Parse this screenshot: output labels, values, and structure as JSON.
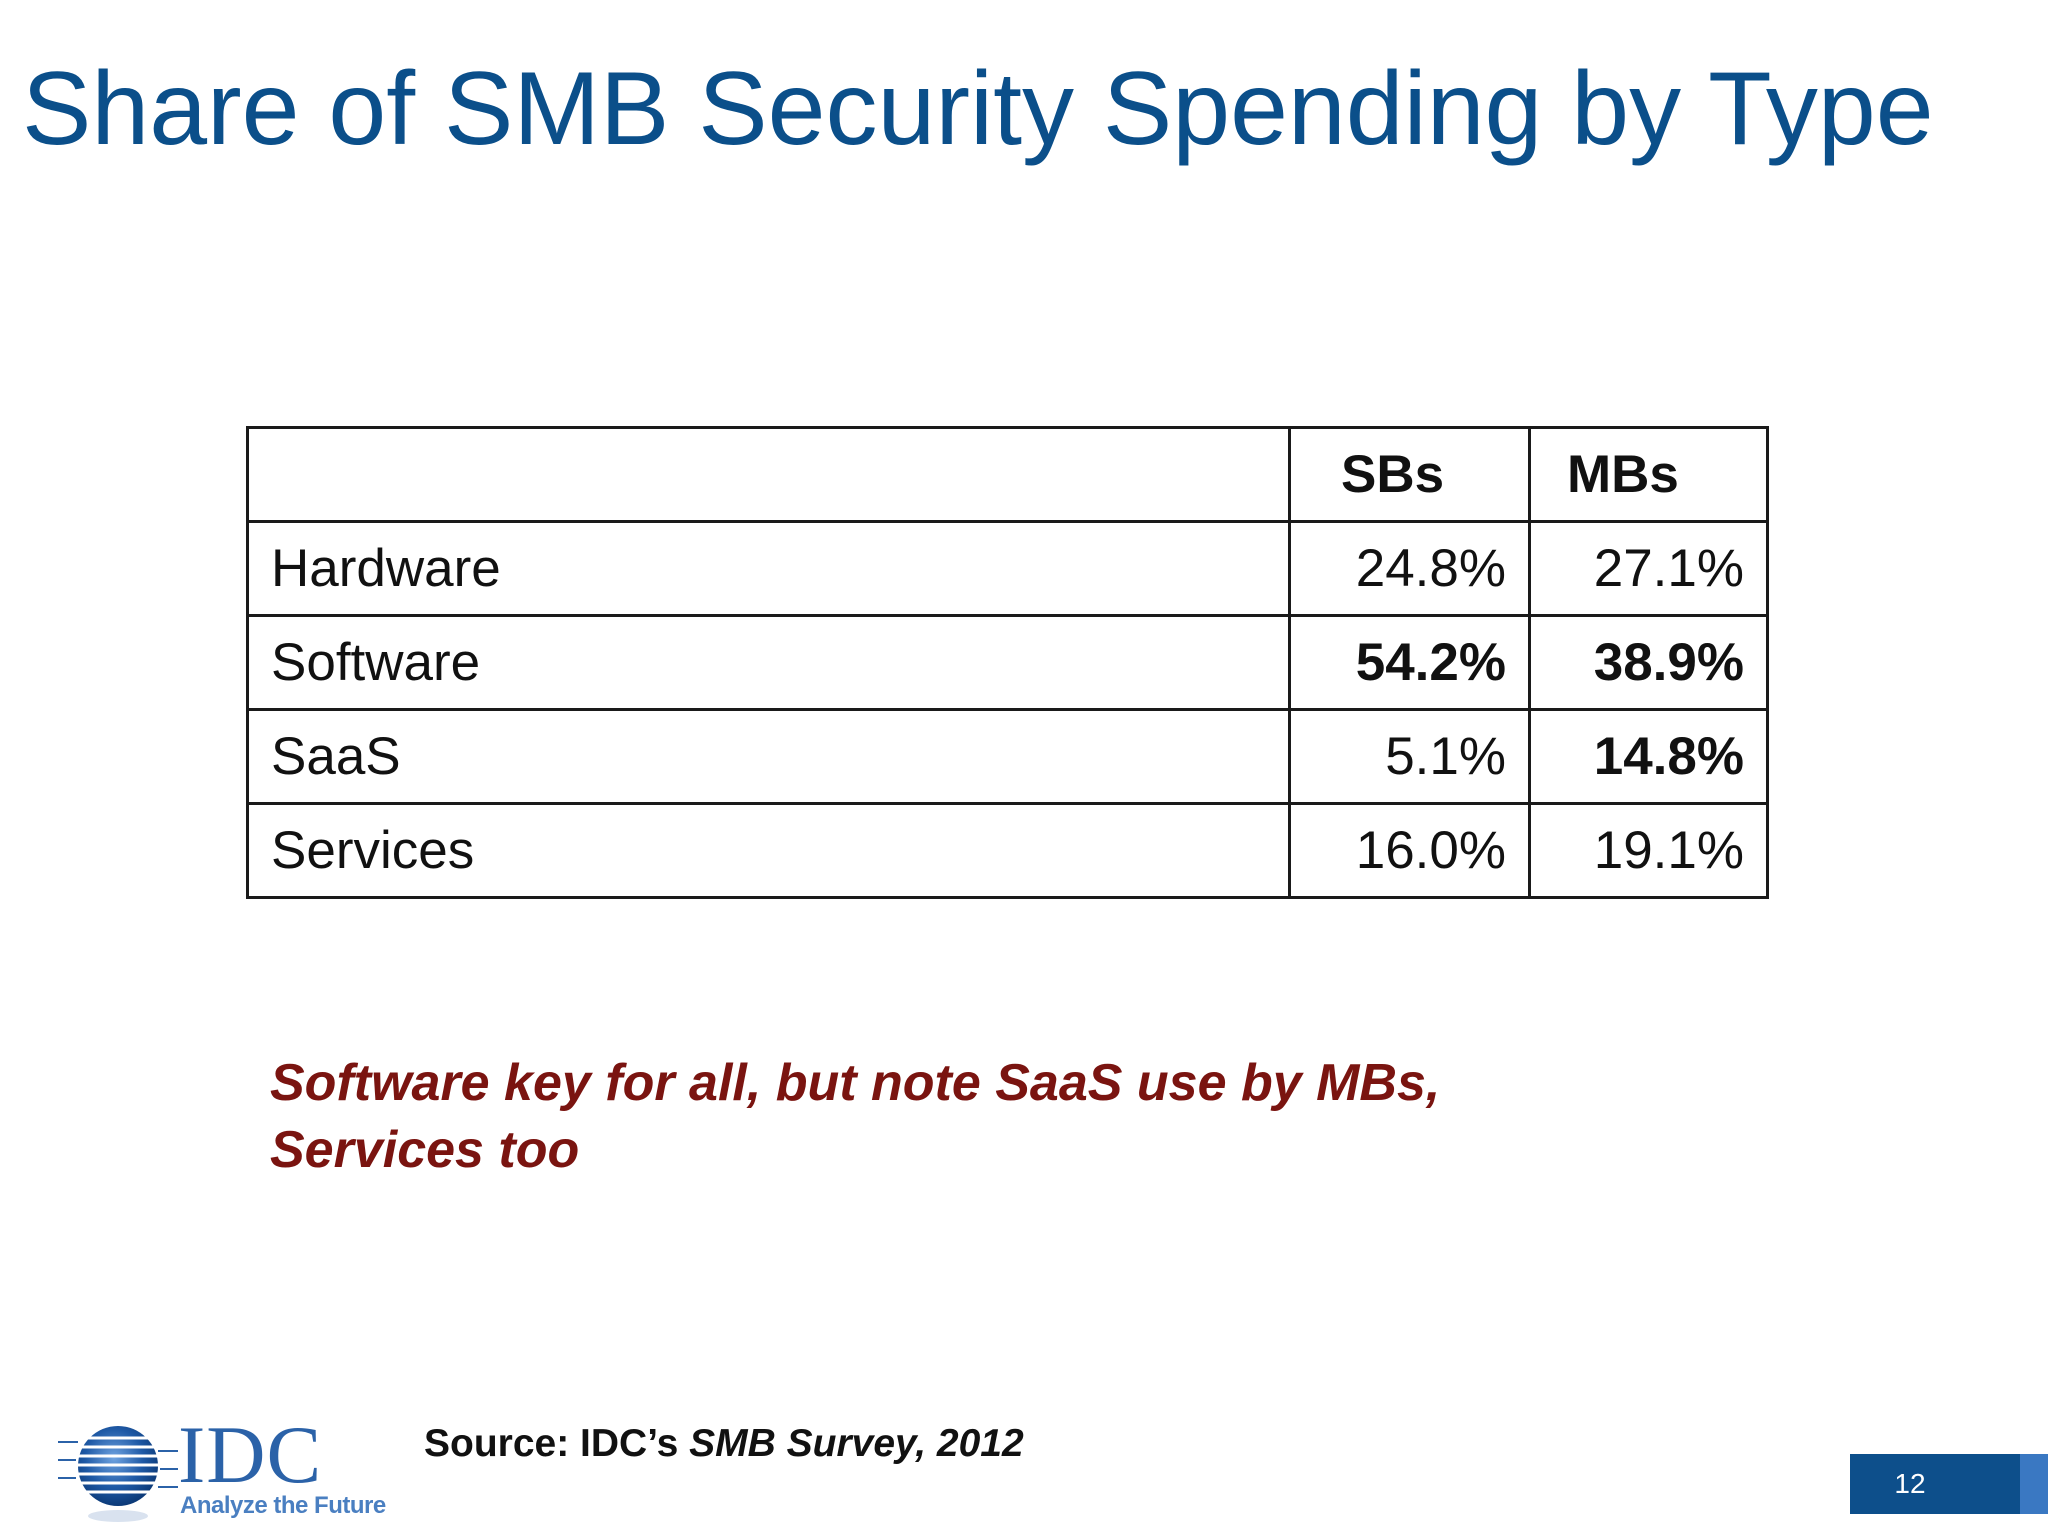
{
  "slide": {
    "title": "Share of SMB Security Spending by Type",
    "page_number": "12"
  },
  "table": {
    "headers": [
      "",
      "SBs",
      "MBs"
    ],
    "rows": [
      {
        "label": "Hardware",
        "sbs": "24.8%",
        "mbs": "27.1%",
        "sbs_bold": false,
        "mbs_bold": false
      },
      {
        "label": "Software",
        "sbs": "54.2%",
        "mbs": "38.9%",
        "sbs_bold": true,
        "mbs_bold": true
      },
      {
        "label": "SaaS",
        "sbs": "5.1%",
        "mbs": "14.8%",
        "sbs_bold": false,
        "mbs_bold": true
      },
      {
        "label": "Services",
        "sbs": "16.0%",
        "mbs": "19.1%",
        "sbs_bold": false,
        "mbs_bold": false
      }
    ]
  },
  "takeaway": {
    "line1": "Software key for all, but note SaaS use by MBs,",
    "line2": "Services too"
  },
  "source": {
    "prefix": "Source: IDC’s ",
    "title": "SMB Survey, 2012"
  },
  "logo": {
    "name": "IDC",
    "tagline": "Analyze the Future",
    "icon": "globe-icon"
  },
  "colors": {
    "title": "#0b4f8a",
    "takeaway": "#7a1410",
    "badge": "#0d4f8b",
    "logo": "#2b62a8"
  }
}
